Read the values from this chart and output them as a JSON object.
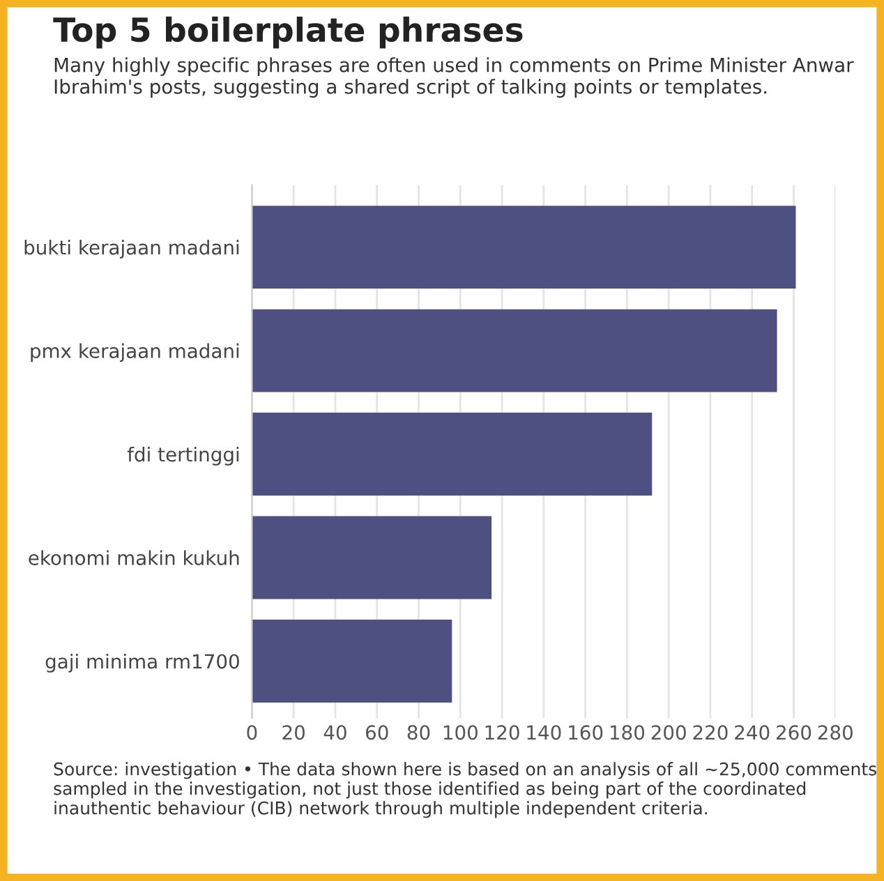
{
  "chart_data": {
    "type": "bar",
    "orientation": "horizontal",
    "title": "Top 5 boilerplate phrases",
    "subtitle": "Many highly specific phrases are often used in comments on Prime Minister Anwar Ibrahim's posts, suggesting a shared script of talking points or templates.",
    "categories": [
      "bukti kerajaan madani",
      "pmx kerajaan madani",
      "fdi tertinggi",
      "ekonomi makin kukuh",
      "gaji minima rm1700"
    ],
    "values": [
      261,
      252,
      192,
      115,
      96
    ],
    "color": "#4f5082",
    "xlim": [
      0,
      280
    ],
    "xticks": [
      0,
      20,
      40,
      60,
      80,
      100,
      120,
      140,
      160,
      180,
      200,
      220,
      240,
      260,
      280
    ],
    "grid": "x",
    "annotations": [
      "Source: investigation • The data shown here is based on an analysis of all ~25,000 comments sampled in the investigation, not just those identified as being part of the coordinated inauthentic behaviour (CIB) network through multiple independent criteria."
    ]
  }
}
